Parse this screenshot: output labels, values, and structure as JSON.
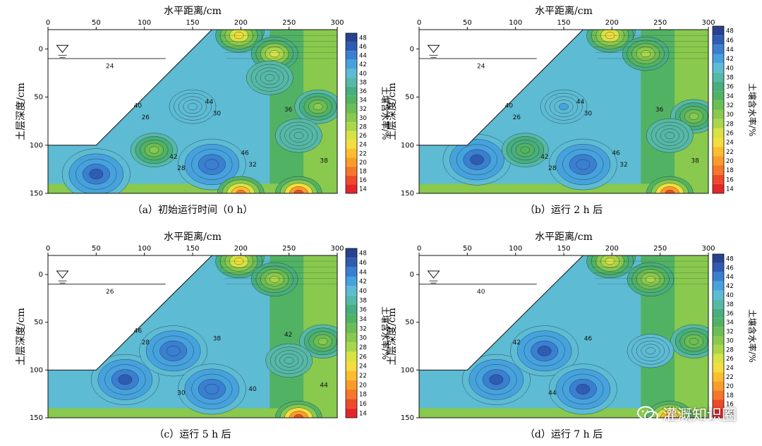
{
  "figure": {
    "x_axis_title": "水平距离/cm",
    "y_axis_title": "土层深度/cm",
    "colorbar_title": "土壤含水率/%",
    "watermark": "灌溉知识圈",
    "colors": {
      "contour_line": "#1e1e1e",
      "water_line": "#333333"
    }
  },
  "chart_data": [
    {
      "type": "heatmap",
      "caption": "（a）初始运行时间（0 h）",
      "x_ticks": [
        0,
        50,
        100,
        150,
        200,
        250,
        300
      ],
      "y_ticks": [
        0,
        50,
        100,
        150
      ],
      "xlim": [
        0,
        300
      ],
      "ylim": [
        150,
        -20
      ],
      "colorbar_ticks": [
        48,
        46,
        44,
        42,
        40,
        38,
        36,
        34,
        32,
        30,
        28,
        26,
        24,
        22,
        20,
        18,
        16,
        14
      ],
      "contour_labels": [
        "24",
        "26",
        "28",
        "30",
        "32",
        "36",
        "38",
        "40",
        "42",
        "44",
        "46"
      ],
      "features": [
        {
          "x": 200,
          "y": -18,
          "v": 16
        },
        {
          "x": 198,
          "y": -14,
          "v": 24
        },
        {
          "x": 235,
          "y": 5,
          "v": 26
        },
        {
          "x": 280,
          "y": 60,
          "v": 30
        },
        {
          "x": 170,
          "y": 120,
          "v": 45
        },
        {
          "x": 110,
          "y": 105,
          "v": 30
        },
        {
          "x": 50,
          "y": 130,
          "v": 46
        },
        {
          "x": 260,
          "y": 90,
          "v": 38
        },
        {
          "x": 230,
          "y": 30,
          "v": 38
        },
        {
          "x": 150,
          "y": 60,
          "v": 41
        },
        {
          "x": 260,
          "y": 150,
          "v": 16
        },
        {
          "x": 200,
          "y": 150,
          "v": 18
        }
      ]
    },
    {
      "type": "heatmap",
      "caption": "（b）运行 2 h 后",
      "x_ticks": [
        0,
        50,
        100,
        150,
        200,
        250,
        300
      ],
      "y_ticks": [
        0,
        50,
        100,
        150
      ],
      "xlim": [
        0,
        300
      ],
      "ylim": [
        150,
        -20
      ],
      "colorbar_ticks": [
        48,
        46,
        44,
        42,
        40,
        38,
        36,
        34,
        32,
        30,
        28,
        26,
        24,
        22,
        20,
        18,
        16,
        14
      ],
      "contour_labels": [
        "24",
        "26",
        "28",
        "30",
        "32",
        "36",
        "38",
        "40",
        "42",
        "44",
        "46"
      ],
      "features": [
        {
          "x": 200,
          "y": -18,
          "v": 16
        },
        {
          "x": 198,
          "y": -14,
          "v": 24
        },
        {
          "x": 235,
          "y": 5,
          "v": 28
        },
        {
          "x": 285,
          "y": 70,
          "v": 30
        },
        {
          "x": 60,
          "y": 115,
          "v": 46
        },
        {
          "x": 110,
          "y": 105,
          "v": 34
        },
        {
          "x": 170,
          "y": 120,
          "v": 45
        },
        {
          "x": 260,
          "y": 90,
          "v": 38
        },
        {
          "x": 150,
          "y": 60,
          "v": 42
        },
        {
          "x": 260,
          "y": 150,
          "v": 16
        }
      ]
    },
    {
      "type": "heatmap",
      "caption": "（c）运行 5 h 后",
      "x_ticks": [
        0,
        50,
        100,
        150,
        200,
        250,
        300
      ],
      "y_ticks": [
        0,
        50,
        100,
        150
      ],
      "xlim": [
        0,
        300
      ],
      "ylim": [
        150,
        -20
      ],
      "colorbar_ticks": [
        48,
        46,
        44,
        42,
        40,
        38,
        36,
        34,
        32,
        30,
        28,
        26,
        24,
        22,
        20,
        18,
        16,
        14
      ],
      "contour_labels": [
        "26",
        "28",
        "30",
        "38",
        "40",
        "42",
        "44",
        "46"
      ],
      "features": [
        {
          "x": 200,
          "y": -18,
          "v": 16
        },
        {
          "x": 198,
          "y": -14,
          "v": 24
        },
        {
          "x": 235,
          "y": 5,
          "v": 28
        },
        {
          "x": 285,
          "y": 70,
          "v": 30
        },
        {
          "x": 80,
          "y": 110,
          "v": 46
        },
        {
          "x": 130,
          "y": 80,
          "v": 45
        },
        {
          "x": 170,
          "y": 120,
          "v": 45
        },
        {
          "x": 250,
          "y": 90,
          "v": 38
        },
        {
          "x": 260,
          "y": 150,
          "v": 16
        }
      ]
    },
    {
      "type": "heatmap",
      "caption": "（d）运行 7 h 后",
      "x_ticks": [
        0,
        50,
        100,
        150,
        200,
        250,
        300
      ],
      "y_ticks": [
        0,
        50,
        100,
        150
      ],
      "xlim": [
        0,
        300
      ],
      "ylim": [
        150,
        -20
      ],
      "colorbar_ticks": [
        48,
        46,
        44,
        42,
        40,
        38,
        36,
        34,
        32,
        30,
        28,
        26,
        24,
        22,
        20,
        18,
        16,
        14
      ],
      "contour_labels": [
        "40",
        "42",
        "44",
        "46"
      ],
      "features": [
        {
          "x": 200,
          "y": -18,
          "v": 16
        },
        {
          "x": 198,
          "y": -14,
          "v": 26
        },
        {
          "x": 240,
          "y": 5,
          "v": 28
        },
        {
          "x": 285,
          "y": 70,
          "v": 32
        },
        {
          "x": 80,
          "y": 110,
          "v": 46
        },
        {
          "x": 130,
          "y": 80,
          "v": 46
        },
        {
          "x": 170,
          "y": 120,
          "v": 46
        },
        {
          "x": 240,
          "y": 80,
          "v": 40
        },
        {
          "x": 260,
          "y": 150,
          "v": 18
        }
      ]
    }
  ]
}
